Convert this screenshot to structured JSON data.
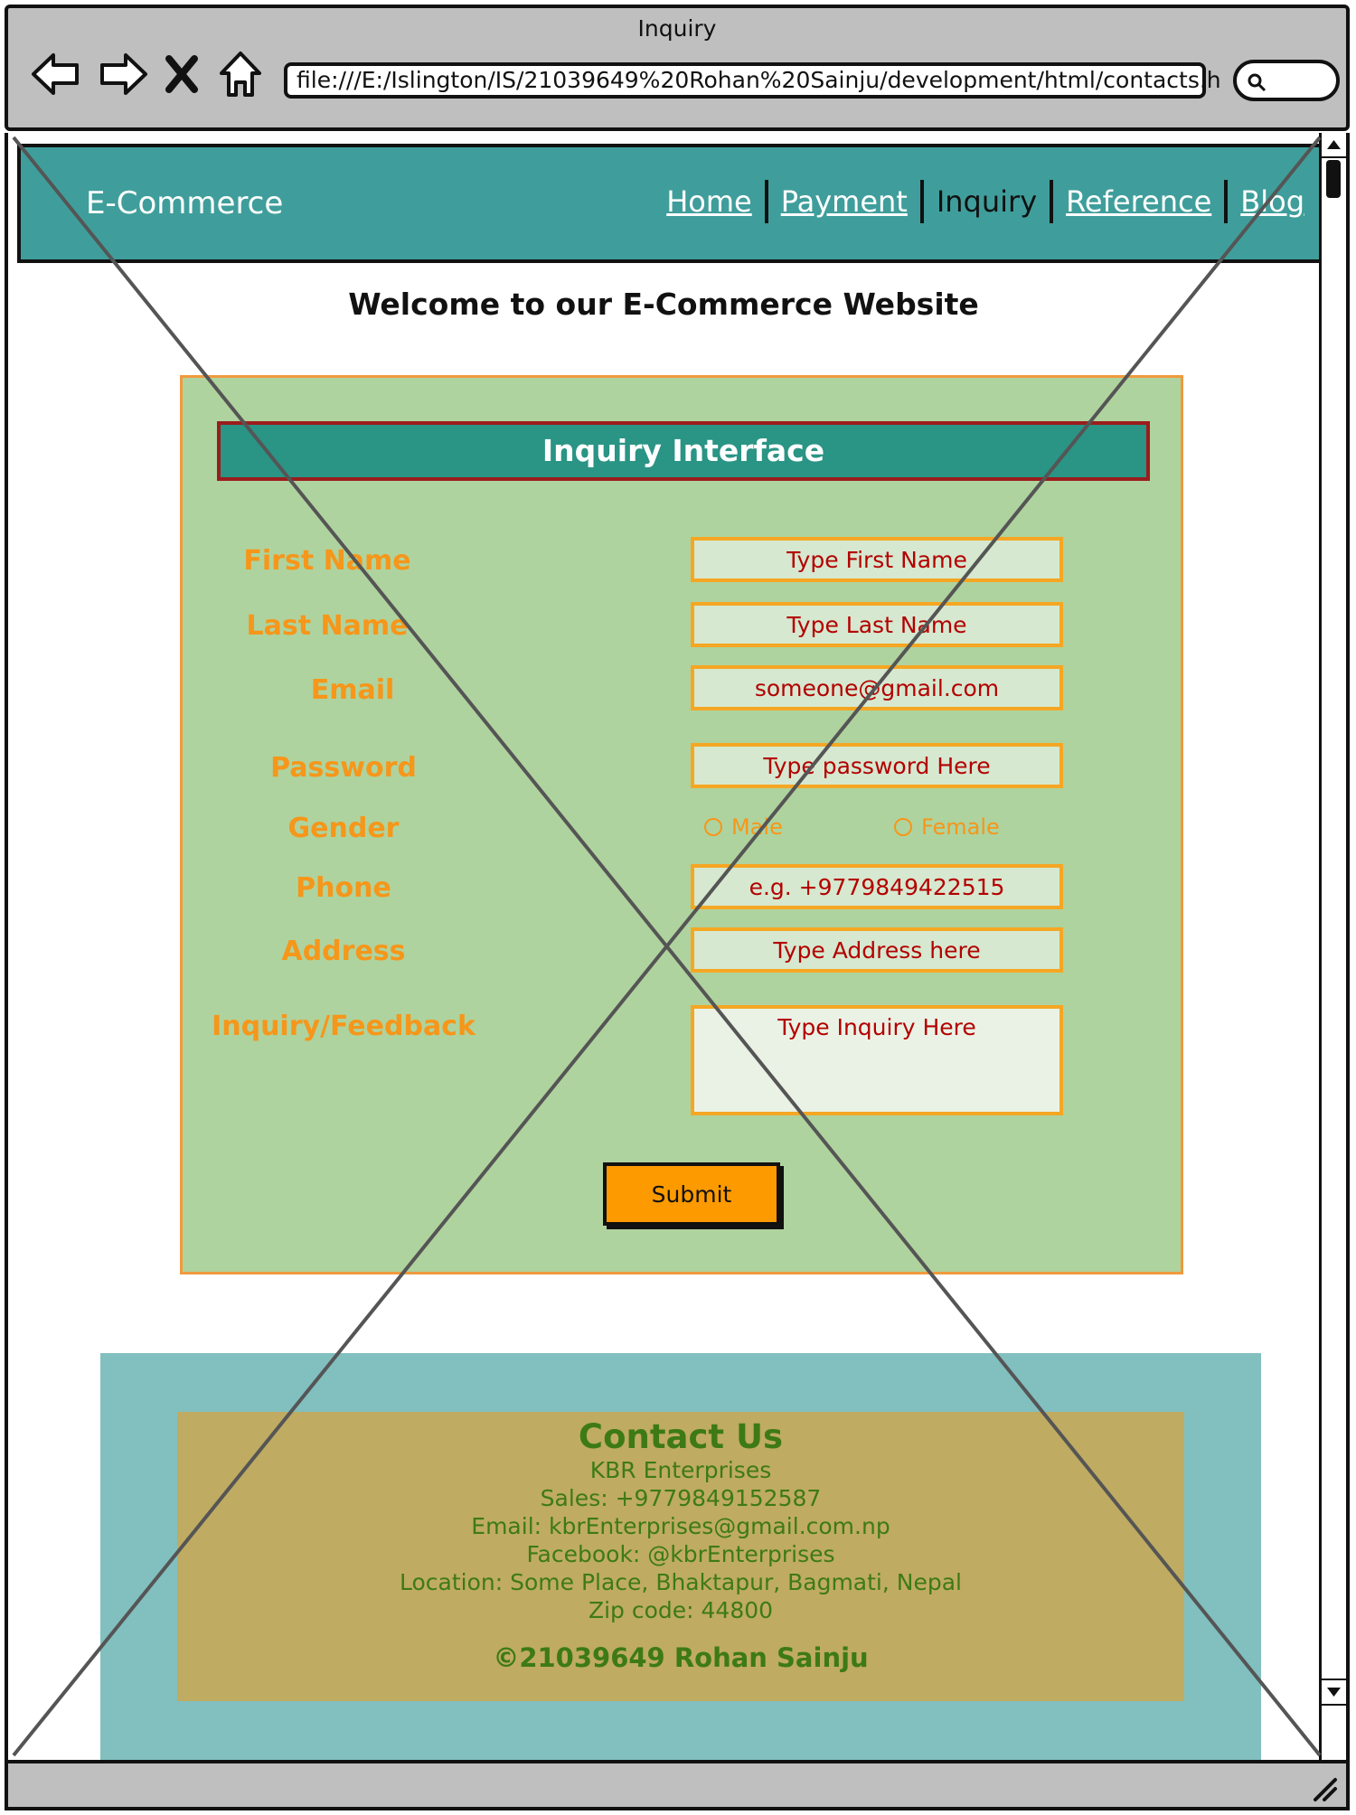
{
  "window": {
    "title": "Inquiry",
    "url": "file:///E:/Islington/IS/21039649%20Rohan%20Sainju/development/html/contacts.h"
  },
  "site": {
    "brand": "E-Commerce",
    "nav": [
      "Home",
      "Payment",
      "Inquiry",
      "Reference",
      "Blog"
    ],
    "active_nav": "Inquiry",
    "welcome": "Welcome to our E-Commerce Website"
  },
  "form": {
    "heading": "Inquiry Interface",
    "first_name": {
      "label": "First Name",
      "placeholder": "Type First Name"
    },
    "last_name": {
      "label": "Last Name",
      "placeholder": "Type Last Name"
    },
    "email": {
      "label": "Email",
      "placeholder": "someone@gmail.com"
    },
    "password": {
      "label": "Password",
      "placeholder": "Type password Here"
    },
    "gender": {
      "label": "Gender",
      "options": [
        "Male",
        "Female"
      ]
    },
    "phone": {
      "label": "Phone",
      "placeholder": "e.g. +9779849422515"
    },
    "address": {
      "label": "Address",
      "placeholder": "Type Address here"
    },
    "inquiry": {
      "label": "Inquiry/Feedback",
      "placeholder": "Type Inquiry Here"
    },
    "submit": "Submit"
  },
  "footer": {
    "heading": "Contact Us",
    "company": "KBR Enterprises",
    "sales": "Sales: +9779849152587",
    "email": "Email: kbrEnterprises@gmail.com.np",
    "facebook": "Facebook: @kbrEnterprises",
    "location": "Location: Some Place, Bhaktapur, Bagmati, Nepal",
    "zip": "Zip code: 44800",
    "copyright": "©21039649 Rohan Sainju"
  },
  "colors": {
    "header": "#3f9e9b",
    "card": "#afd39e",
    "label": "#f6961a",
    "submit": "#fd9a00",
    "footer_outer": "#82bfbf",
    "footer_inner": "#bfab62",
    "footer_text": "#3d7a17"
  },
  "icons": [
    "back-arrow-icon",
    "forward-arrow-icon",
    "stop-icon",
    "home-icon",
    "search-icon",
    "resize-grip-icon"
  ]
}
